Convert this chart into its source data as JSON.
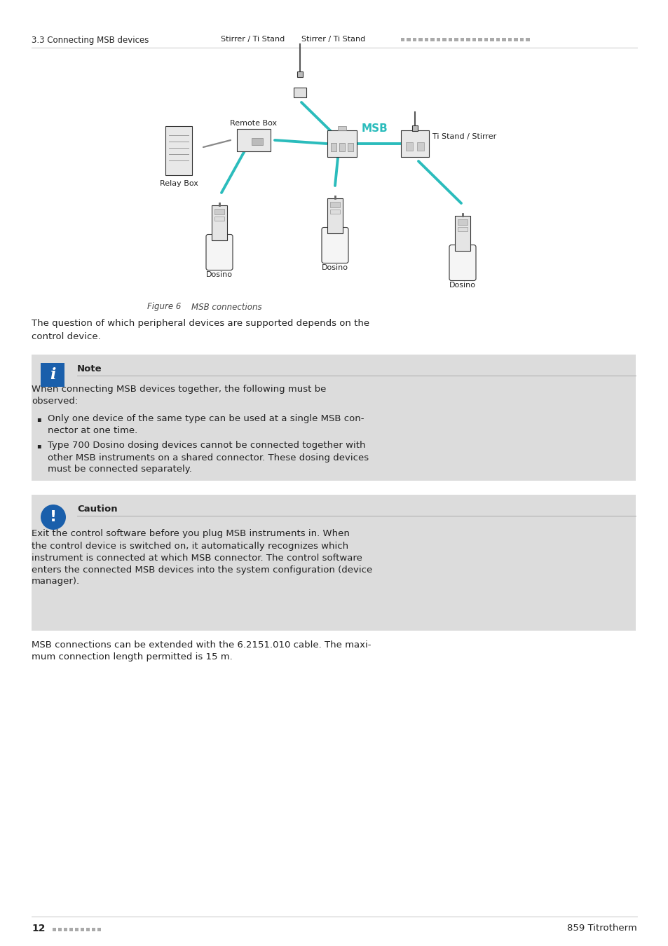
{
  "page_header_left": "3.3 Connecting MSB devices",
  "figure_caption_italic": "Figure 6",
  "figure_caption_normal": "    MSB connections",
  "intro_line1": "The question of which peripheral devices are supported depends on the",
  "intro_line2": "control device.",
  "note_title": "Note",
  "note_intro_line1": "When connecting MSB devices together, the following must be",
  "note_intro_line2": "observed:",
  "note_bullet1_line1": "Only one device of the same type can be used at a single MSB con-",
  "note_bullet1_line2": "nector at one time.",
  "note_bullet2_line1": "Type 700 Dosino dosing devices cannot be connected together with",
  "note_bullet2_line2": "other MSB instruments on a shared connector. These dosing devices",
  "note_bullet2_line3": "must be connected separately.",
  "caution_title": "Caution",
  "caution_line1": "Exit the control software before you plug MSB instruments in. When",
  "caution_line2": "the control device is switched on, it automatically recognizes which",
  "caution_line3": "instrument is connected at which MSB connector. The control software",
  "caution_line4": "enters the connected MSB devices into the system configuration (device",
  "caution_line5": "manager).",
  "footer_line1": "MSB connections can be extended with the 6.2151.010 cable. The maxi-",
  "footer_line2": "mum connection length permitted is 15 m.",
  "page_number": "12",
  "product_name": "859 Titrotherm",
  "msb_color": "#2BBCBC",
  "note_bg": "#DCDCDC",
  "caution_bg": "#DCDCDC",
  "icon_blue": "#1A5FAB",
  "device_fill": "#F0F0F0",
  "device_edge": "#333333",
  "line_color": "#888888"
}
